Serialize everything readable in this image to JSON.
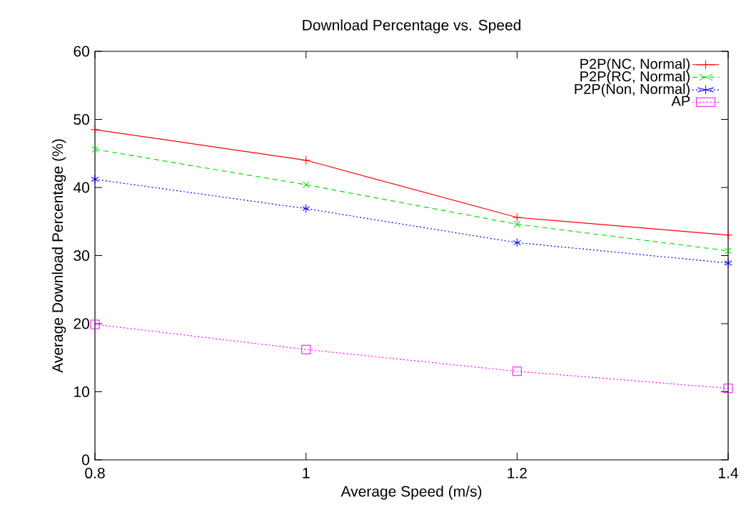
{
  "chart_data": {
    "type": "line",
    "title": "Download Percentage vs. Speed",
    "xlabel": "Average Speed (m/s)",
    "ylabel": "Average Download Percentage (%)",
    "x": [
      0.8,
      1,
      1.2,
      1.4
    ],
    "series": [
      {
        "name": "P2P(NC, Normal)",
        "color": "#ff0000",
        "marker": "plus",
        "line_style": "solid",
        "values": [
          48.5,
          44.0,
          35.6,
          33.0
        ]
      },
      {
        "name": "P2P(RC, Normal)",
        "color": "#00e000",
        "marker": "x",
        "line_style": "dashed",
        "values": [
          45.6,
          40.4,
          34.6,
          30.7
        ]
      },
      {
        "name": "P2P(Non, Normal)",
        "color": "#0000ff",
        "marker": "cross",
        "line_style": "dotted",
        "values": [
          41.2,
          36.9,
          31.9,
          28.9
        ]
      },
      {
        "name": "AP",
        "color": "#ff00ff",
        "marker": "square",
        "line_style": "dotted",
        "values": [
          19.9,
          16.2,
          13.0,
          10.5
        ]
      }
    ],
    "xlim": [
      0.8,
      1.4
    ],
    "ylim": [
      0,
      60
    ],
    "xticks": [
      0.8,
      1,
      1.2,
      1.4
    ],
    "yticks": [
      0,
      10,
      20,
      30,
      40,
      50,
      60
    ],
    "legend": "top right"
  }
}
